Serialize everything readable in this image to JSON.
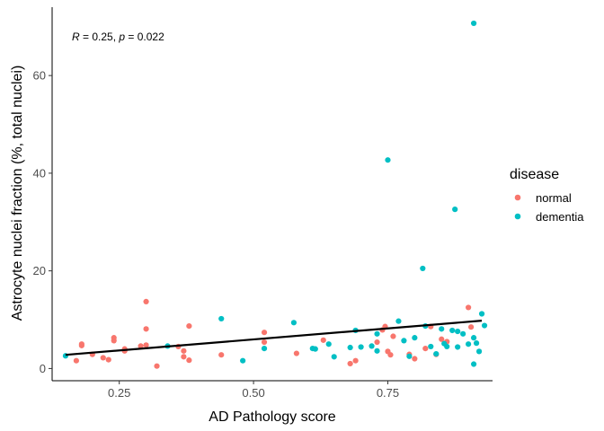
{
  "chart_data": {
    "type": "scatter",
    "xlabel": "AD Pathology score",
    "ylabel": "Astrocyte nuclei fraction (%, total nuclei)",
    "xlim": [
      0.125,
      0.945
    ],
    "ylim": [
      -2.5,
      74
    ],
    "x_ticks": [
      0.25,
      0.5,
      0.75
    ],
    "x_tick_labels": [
      "0.25",
      "0.50",
      "0.75"
    ],
    "y_ticks": [
      0,
      20,
      40,
      60
    ],
    "y_tick_labels": [
      "0",
      "20",
      "40",
      "60"
    ],
    "grid": false,
    "legend": {
      "title": "disease",
      "position": "right",
      "entries": [
        "normal",
        "dementia"
      ]
    },
    "annotation": {
      "r_symbol": "R",
      "r_text": " = 0.25, ",
      "p_symbol": "p",
      "p_text": " = 0.022"
    },
    "trend_line": {
      "x": [
        0.15,
        0.925
      ],
      "y": [
        2.8,
        9.8
      ]
    },
    "series": [
      {
        "name": "normal",
        "color": "#F8766D",
        "points": [
          [
            0.17,
            1.6
          ],
          [
            0.18,
            5.0
          ],
          [
            0.18,
            4.7
          ],
          [
            0.2,
            2.9
          ],
          [
            0.22,
            2.2
          ],
          [
            0.23,
            1.8
          ],
          [
            0.24,
            6.3
          ],
          [
            0.24,
            5.7
          ],
          [
            0.26,
            3.6
          ],
          [
            0.26,
            4.0
          ],
          [
            0.29,
            4.6
          ],
          [
            0.3,
            4.8
          ],
          [
            0.3,
            13.7
          ],
          [
            0.3,
            8.1
          ],
          [
            0.32,
            0.5
          ],
          [
            0.36,
            4.5
          ],
          [
            0.37,
            3.6
          ],
          [
            0.37,
            2.4
          ],
          [
            0.38,
            8.7
          ],
          [
            0.38,
            1.7
          ],
          [
            0.44,
            2.8
          ],
          [
            0.52,
            7.4
          ],
          [
            0.52,
            5.4
          ],
          [
            0.58,
            3.1
          ],
          [
            0.63,
            5.8
          ],
          [
            0.68,
            1.0
          ],
          [
            0.69,
            1.6
          ],
          [
            0.73,
            5.4
          ],
          [
            0.74,
            7.9
          ],
          [
            0.745,
            8.6
          ],
          [
            0.75,
            3.5
          ],
          [
            0.755,
            2.8
          ],
          [
            0.76,
            6.6
          ],
          [
            0.79,
            2.9
          ],
          [
            0.8,
            2.0
          ],
          [
            0.82,
            4.1
          ],
          [
            0.83,
            8.6
          ],
          [
            0.84,
            2.9
          ],
          [
            0.85,
            6.0
          ],
          [
            0.86,
            5.5
          ],
          [
            0.9,
            12.5
          ],
          [
            0.905,
            8.5
          ]
        ]
      },
      {
        "name": "dementia",
        "color": "#00BFC4",
        "points": [
          [
            0.15,
            2.6
          ],
          [
            0.34,
            4.6
          ],
          [
            0.44,
            10.2
          ],
          [
            0.48,
            1.6
          ],
          [
            0.52,
            4.1
          ],
          [
            0.575,
            9.4
          ],
          [
            0.61,
            4.1
          ],
          [
            0.615,
            4.0
          ],
          [
            0.64,
            5.0
          ],
          [
            0.65,
            2.4
          ],
          [
            0.68,
            4.3
          ],
          [
            0.69,
            7.8
          ],
          [
            0.7,
            4.4
          ],
          [
            0.72,
            4.6
          ],
          [
            0.73,
            3.6
          ],
          [
            0.73,
            7.1
          ],
          [
            0.75,
            42.7
          ],
          [
            0.77,
            9.7
          ],
          [
            0.78,
            5.7
          ],
          [
            0.79,
            2.5
          ],
          [
            0.8,
            6.3
          ],
          [
            0.815,
            20.5
          ],
          [
            0.82,
            8.7
          ],
          [
            0.83,
            4.5
          ],
          [
            0.84,
            3.0
          ],
          [
            0.85,
            8.1
          ],
          [
            0.855,
            5.1
          ],
          [
            0.86,
            4.5
          ],
          [
            0.87,
            7.8
          ],
          [
            0.875,
            32.6
          ],
          [
            0.88,
            7.6
          ],
          [
            0.88,
            4.4
          ],
          [
            0.89,
            7.1
          ],
          [
            0.9,
            5.0
          ],
          [
            0.91,
            6.3
          ],
          [
            0.91,
            0.9
          ],
          [
            0.91,
            70.7
          ],
          [
            0.915,
            5.2
          ],
          [
            0.92,
            3.5
          ],
          [
            0.925,
            11.2
          ],
          [
            0.93,
            8.8
          ]
        ]
      }
    ]
  }
}
